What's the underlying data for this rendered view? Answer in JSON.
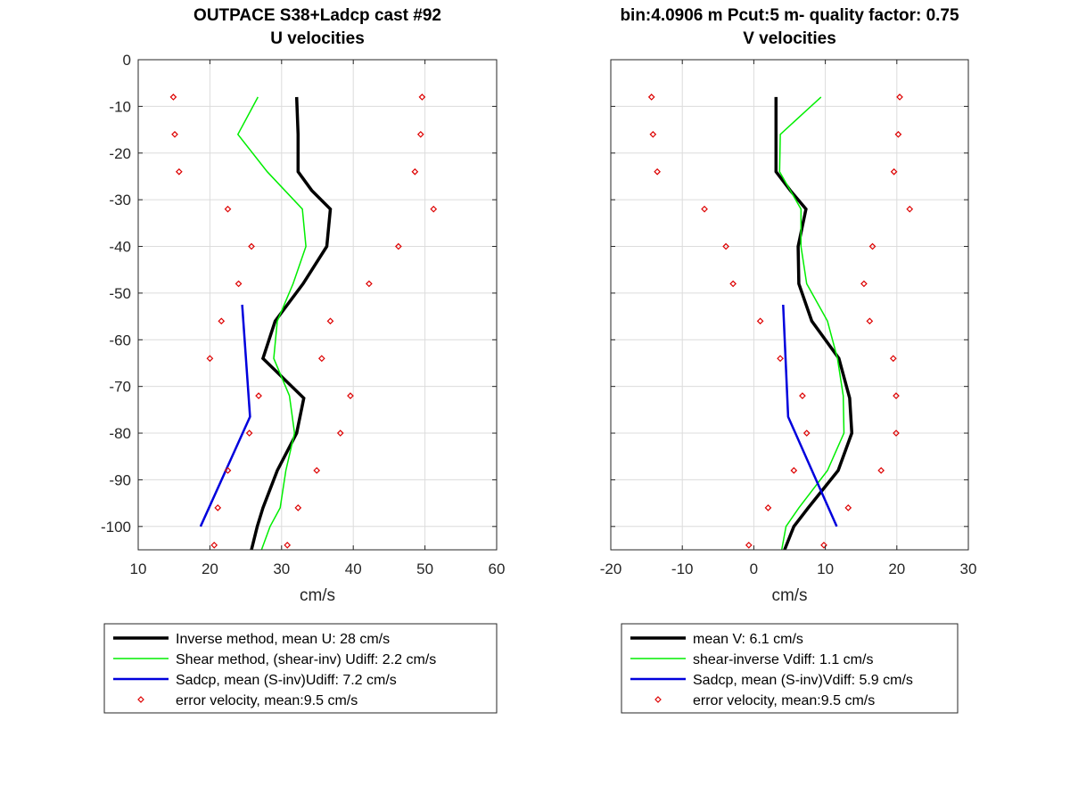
{
  "chart_data": [
    {
      "type": "line",
      "title": [
        "OUTPACE S38+Ladcp cast #92",
        "U velocities"
      ],
      "xlabel": "cm/s",
      "ylabel": "",
      "xlim": [
        10,
        60
      ],
      "ylim": [
        -105,
        0
      ],
      "xticks": [
        10,
        20,
        30,
        40,
        50,
        60
      ],
      "yticks": [
        0,
        -10,
        -20,
        -30,
        -40,
        -50,
        -60,
        -70,
        -80,
        -90,
        -100
      ],
      "grid": true,
      "legend_position": "below",
      "series": [
        {
          "name": "Inverse method, mean U:  28 cm/s",
          "style": "line",
          "color": "#000000",
          "width": 3.5,
          "x": [
            32.1,
            32.3,
            32.3,
            34.2,
            36.8,
            36.3,
            33.0,
            29.1,
            27.4,
            33.1,
            32.1,
            29.4,
            27.4,
            26.6,
            25.8
          ],
          "y": [
            -8,
            -16,
            -24,
            -28,
            -32,
            -40,
            -48,
            -56,
            -64,
            -72.5,
            -80,
            -88,
            -96,
            -100,
            -105
          ]
        },
        {
          "name": "Shear method, (shear-inv)  Udiff:  2.2 cm/s",
          "style": "line",
          "color": "#00ee00",
          "width": 1.5,
          "x": [
            26.7,
            23.9,
            28.0,
            32.9,
            33.4,
            31.6,
            29.4,
            28.9,
            31.1,
            31.8,
            30.6,
            29.8,
            28.4,
            27.2
          ],
          "y": [
            -8,
            -16,
            -24,
            -32,
            -40,
            -48,
            -56,
            -64,
            -72,
            -80,
            -88,
            -96,
            -100,
            -105
          ]
        },
        {
          "name": "Sadcp, mean (S-inv)Udiff: 7.2 cm/s",
          "style": "line",
          "color": "#0000dd",
          "width": 2.5,
          "x": [
            24.5,
            25.6,
            18.7
          ],
          "y": [
            -52.5,
            -76.5,
            -100
          ]
        },
        {
          "name": "error velocity, mean:9.5 cm/s",
          "style": "marker",
          "color": "#dd0000",
          "x": [
            14.9,
            15.1,
            15.7,
            22.5,
            25.8,
            24.0,
            21.6,
            20.0,
            26.8,
            25.5,
            22.5,
            21.1,
            20.6,
            49.6,
            49.4,
            48.6,
            51.2,
            46.3,
            42.2,
            36.8,
            35.6,
            39.6,
            38.2,
            34.9,
            32.3,
            30.8
          ],
          "y": [
            -8,
            -16,
            -24,
            -32,
            -40,
            -48,
            -56,
            -64,
            -72,
            -80,
            -88,
            -96,
            -104,
            -8,
            -16,
            -24,
            -32,
            -40,
            -48,
            -56,
            -64,
            -72,
            -80,
            -88,
            -96,
            -104
          ]
        }
      ]
    },
    {
      "type": "line",
      "title": [
        "bin:4.0906 m  Pcut:5 m- quality factor:  0.75",
        "V velocities"
      ],
      "xlabel": "cm/s",
      "ylabel": "",
      "xlim": [
        -20,
        30
      ],
      "ylim": [
        -105,
        0
      ],
      "xticks": [
        -20,
        -10,
        0,
        10,
        20,
        30
      ],
      "yticks": [
        0,
        -10,
        -20,
        -30,
        -40,
        -50,
        -60,
        -70,
        -80,
        -90,
        -100
      ],
      "grid": true,
      "legend_position": "below",
      "series": [
        {
          "name": "mean V:  6.1 cm/s",
          "style": "line",
          "color": "#000000",
          "width": 3.5,
          "x": [
            3.1,
            3.1,
            3.1,
            5.1,
            7.3,
            6.2,
            6.3,
            8.1,
            11.9,
            13.4,
            13.7,
            11.8,
            7.6,
            5.6,
            4.3
          ],
          "y": [
            -8,
            -16,
            -24,
            -28,
            -32,
            -40,
            -48,
            -56,
            -64,
            -72.5,
            -80,
            -88,
            -96,
            -100,
            -105
          ]
        },
        {
          "name": "shear-inverse Vdiff:  1.1 cm/s",
          "style": "line",
          "color": "#00ee00",
          "width": 1.5,
          "x": [
            9.4,
            3.7,
            3.6,
            6.6,
            6.6,
            7.4,
            10.3,
            11.7,
            12.5,
            12.6,
            10.3,
            6.3,
            4.5,
            3.9
          ],
          "y": [
            -8,
            -16,
            -24,
            -32,
            -40,
            -48,
            -56,
            -64,
            -72,
            -80,
            -88,
            -96,
            -100,
            -105
          ]
        },
        {
          "name": "Sadcp, mean (S-inv)Vdiff: 5.9 cm/s",
          "style": "line",
          "color": "#0000dd",
          "width": 2.5,
          "x": [
            4.1,
            4.8,
            11.6
          ],
          "y": [
            -52.5,
            -76.5,
            -100
          ]
        },
        {
          "name": "error velocity, mean:9.5 cm/s",
          "style": "marker",
          "color": "#dd0000",
          "x": [
            -14.3,
            -14.1,
            -13.5,
            -6.9,
            -3.9,
            -2.9,
            0.9,
            3.7,
            6.8,
            7.4,
            5.6,
            2.0,
            -0.7,
            20.4,
            20.2,
            19.6,
            21.8,
            16.6,
            15.4,
            16.2,
            19.5,
            19.9,
            19.9,
            17.8,
            13.2,
            9.8
          ],
          "y": [
            -8,
            -16,
            -24,
            -32,
            -40,
            -48,
            -56,
            -64,
            -72,
            -80,
            -88,
            -96,
            -104,
            -8,
            -16,
            -24,
            -32,
            -40,
            -48,
            -56,
            -64,
            -72,
            -80,
            -88,
            -96,
            -104
          ]
        }
      ]
    }
  ]
}
